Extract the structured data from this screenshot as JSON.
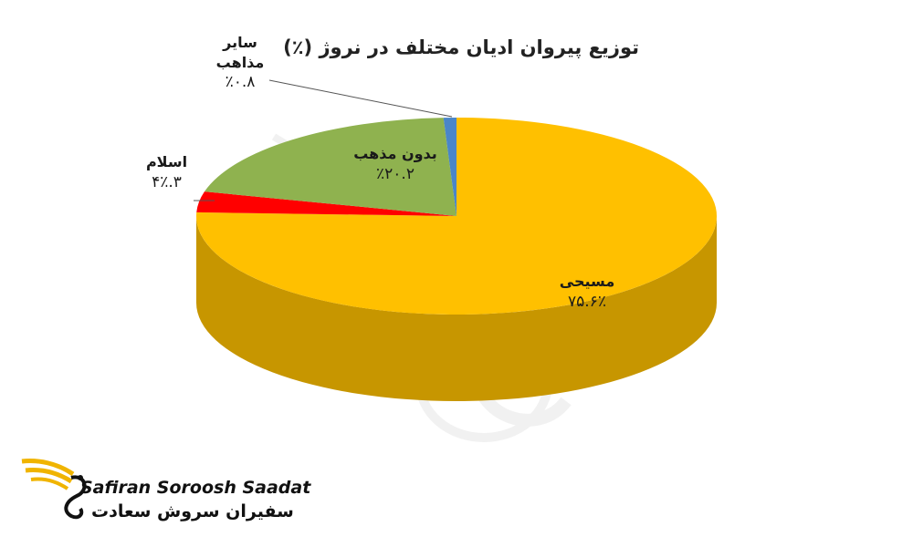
{
  "chart_data": {
    "type": "pie",
    "title": "توزیع پیروان ادیان مختلف در نروژ (٪)",
    "slices": [
      {
        "label": "مسیحی",
        "value": 75.6,
        "value_label": "٧۵.۶٪",
        "color": "#FFC000"
      },
      {
        "label": "اسلام",
        "value": 3.4,
        "value_label": "٣.۴٪",
        "color": "#FF0000"
      },
      {
        "label": "بدون مذهب",
        "value": 20.2,
        "value_label": "٢٠.٢٪",
        "color": "#8FB24F"
      },
      {
        "label": "سایر مذاهب",
        "value": 0.8,
        "value_label": "٠.٨٪",
        "color": "#4A86C8"
      }
    ],
    "style": "3d-pie"
  },
  "logo": {
    "text_en": "Safiran Soroosh Saadat",
    "text_fa": "سفیران سروش سعادت"
  }
}
